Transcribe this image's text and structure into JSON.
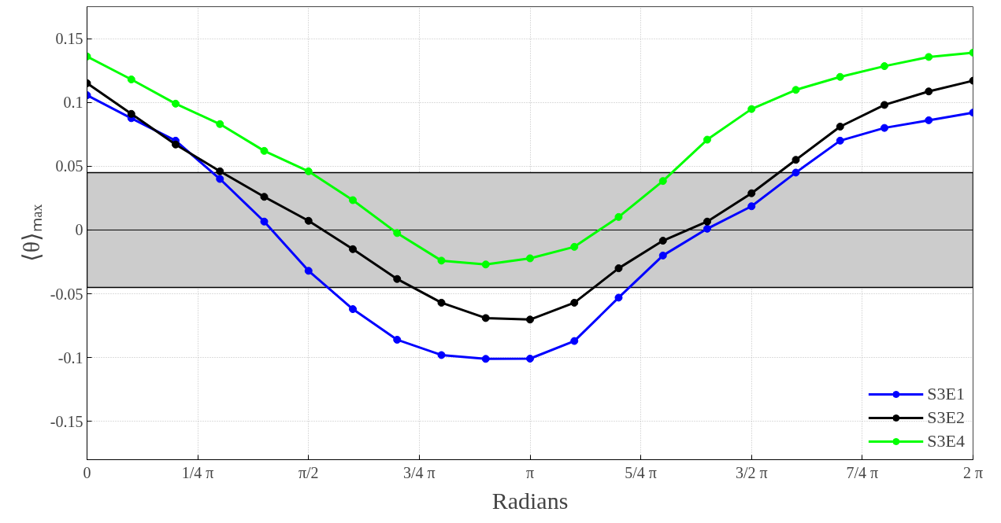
{
  "chart_data": {
    "type": "line",
    "xlabel": "Radians",
    "ylabel": "⟨θ⟩ₘₐₓ",
    "x": [
      0,
      0.3142,
      0.6283,
      0.9425,
      1.2566,
      1.5708,
      1.885,
      2.1991,
      2.5133,
      2.8274,
      3.1416,
      3.4558,
      3.7699,
      4.0841,
      4.3982,
      4.7124,
      5.0265,
      5.3407,
      5.6549,
      5.969,
      6.2832
    ],
    "series": [
      {
        "name": "S3E1",
        "color": "#0000ff",
        "values": [
          0.1056,
          0.0876,
          0.07,
          0.04,
          0.0066,
          -0.032,
          -0.062,
          -0.086,
          -0.098,
          -0.101,
          -0.1008,
          -0.087,
          -0.053,
          -0.02,
          0.001,
          0.0186,
          0.045,
          0.07,
          0.08,
          0.086,
          0.092
        ]
      },
      {
        "name": "S3E2",
        "color": "#000000",
        "values": [
          0.115,
          0.091,
          0.067,
          0.046,
          0.026,
          0.0072,
          -0.015,
          -0.0384,
          -0.057,
          -0.069,
          -0.0702,
          -0.057,
          -0.03,
          -0.0084,
          0.0066,
          0.0288,
          0.055,
          0.081,
          0.098,
          0.1086,
          0.117
        ]
      },
      {
        "name": "S3E4",
        "color": "#00ff00",
        "values": [
          0.136,
          0.118,
          0.099,
          0.083,
          0.062,
          0.046,
          0.0234,
          -0.0024,
          -0.024,
          -0.027,
          -0.0222,
          -0.0132,
          0.0102,
          0.0384,
          0.0708,
          0.0948,
          0.1098,
          0.12,
          0.1284,
          0.1356,
          0.139
        ]
      }
    ],
    "xlim": [
      0,
      6.2832
    ],
    "xticks": [
      0,
      {
        "value": 0.7854,
        "label": "1/4 π"
      },
      {
        "value": 1.5708,
        "label": "π/2"
      },
      {
        "value": 2.3562,
        "label": "3/4 π"
      },
      {
        "value": 3.1416,
        "label": "π"
      },
      {
        "value": 3.927,
        "label": "5/4 π"
      },
      {
        "value": 4.7124,
        "label": "3/2 π"
      },
      {
        "value": 5.4978,
        "label": "7/4 π"
      },
      {
        "value": 6.2832,
        "label": "2 π"
      }
    ],
    "ylim": [
      -0.18,
      0.175
    ],
    "yticks": [
      -0.15,
      -0.1,
      -0.05,
      0,
      0.05,
      0.1,
      0.15
    ],
    "bands": [
      {
        "axis": "y",
        "from": -0.045,
        "to": 0.045,
        "color": "#cccccc"
      }
    ],
    "ref_lines": [
      {
        "axis": "y",
        "value": 0,
        "color": "#000000"
      }
    ],
    "grid": true,
    "legend": "bottom right",
    "marker": "circle",
    "line_style": "solid"
  }
}
